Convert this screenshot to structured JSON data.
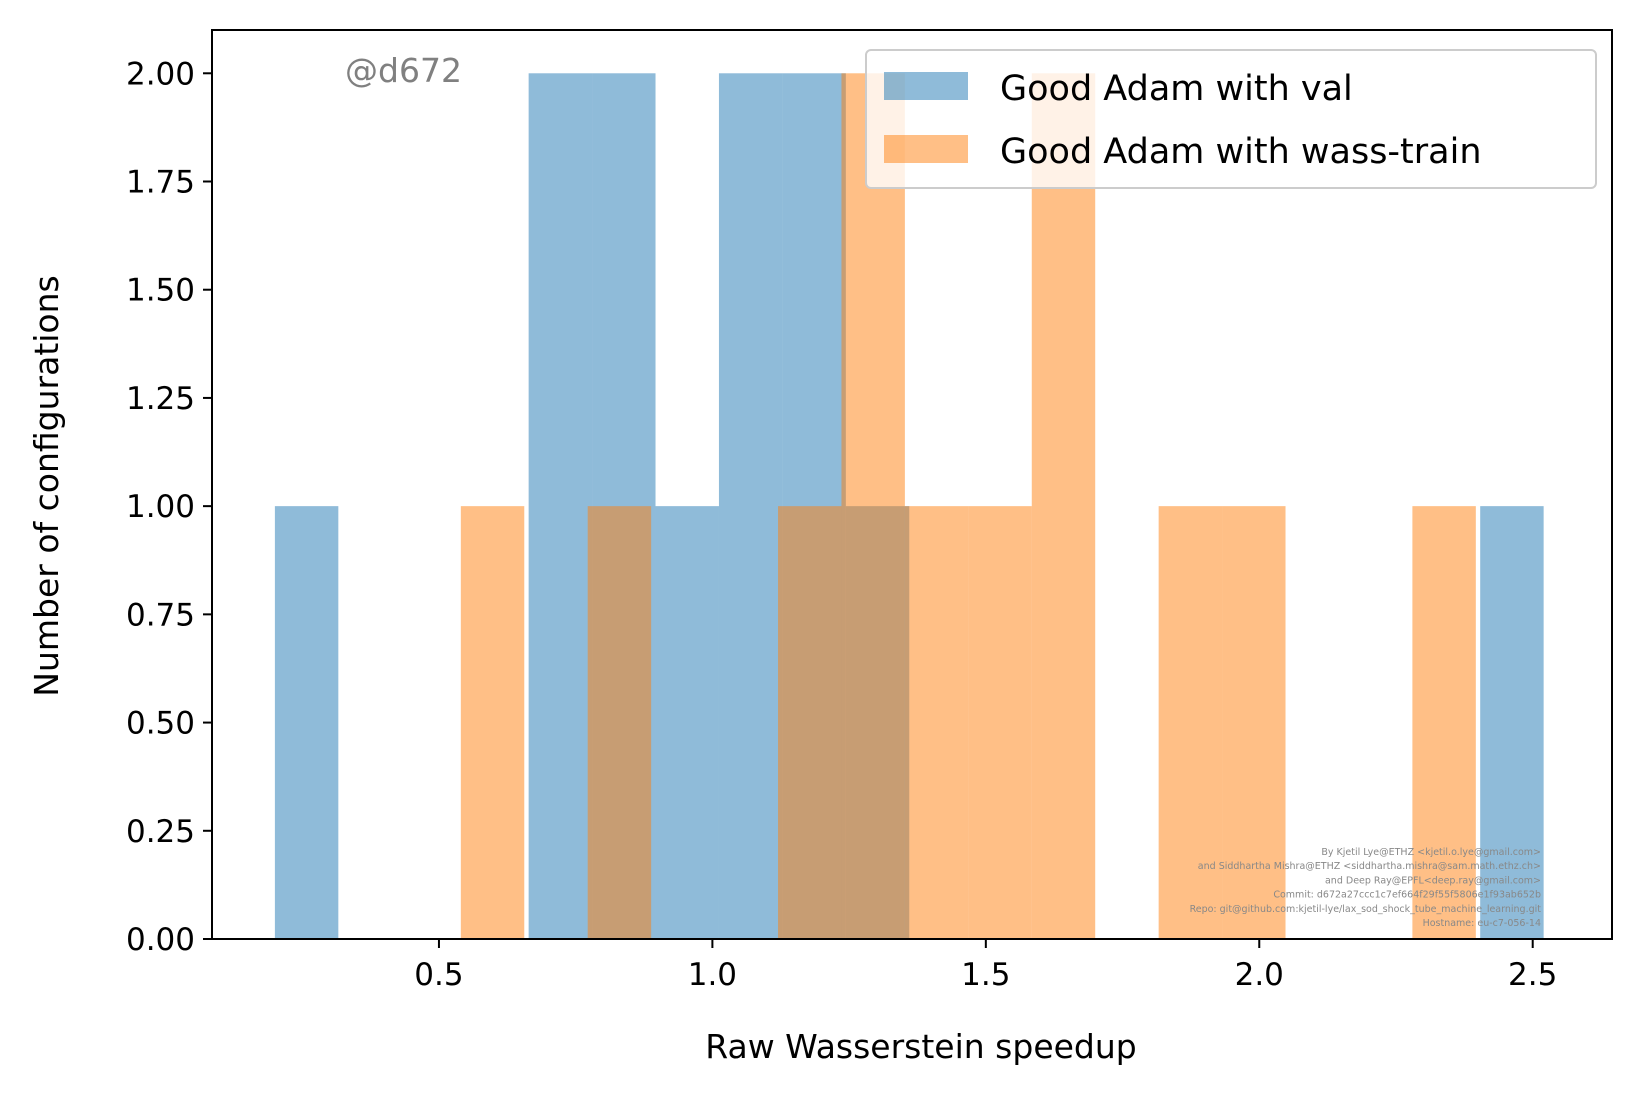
{
  "chart_data": {
    "type": "bar",
    "xlabel": "Raw Wasserstein speedup",
    "ylabel": "Number of configurations",
    "xlim": [
      0.085,
      2.645
    ],
    "ylim": [
      0,
      2.1
    ],
    "x_ticks": [
      {
        "value": 0.5,
        "label": "0.5"
      },
      {
        "value": 1.0,
        "label": "1.0"
      },
      {
        "value": 1.5,
        "label": "1.5"
      },
      {
        "value": 2.0,
        "label": "2.0"
      },
      {
        "value": 2.5,
        "label": "2.5"
      }
    ],
    "y_ticks": [
      {
        "value": 0.0,
        "label": "0.00"
      },
      {
        "value": 0.25,
        "label": "0.25"
      },
      {
        "value": 0.5,
        "label": "0.50"
      },
      {
        "value": 0.75,
        "label": "0.75"
      },
      {
        "value": 1.0,
        "label": "1.00"
      },
      {
        "value": 1.25,
        "label": "1.25"
      },
      {
        "value": 1.5,
        "label": "1.50"
      },
      {
        "value": 1.75,
        "label": "1.75"
      },
      {
        "value": 2.0,
        "label": "2.00"
      }
    ],
    "grid": false,
    "legend_position": "top-right",
    "series": [
      {
        "name": "Good Adam with val",
        "color": "#1f77b4",
        "opacity": 0.5,
        "bins": [
          {
            "x0": 0.2,
            "x1": 0.316,
            "count": 1
          },
          {
            "x0": 0.316,
            "x1": 0.432,
            "count": 0
          },
          {
            "x0": 0.432,
            "x1": 0.548,
            "count": 0
          },
          {
            "x0": 0.548,
            "x1": 0.664,
            "count": 0
          },
          {
            "x0": 0.664,
            "x1": 0.78,
            "count": 2
          },
          {
            "x0": 0.78,
            "x1": 0.896,
            "count": 2
          },
          {
            "x0": 0.896,
            "x1": 1.012,
            "count": 1
          },
          {
            "x0": 1.012,
            "x1": 1.128,
            "count": 2
          },
          {
            "x0": 1.128,
            "x1": 1.244,
            "count": 2
          },
          {
            "x0": 1.244,
            "x1": 1.36,
            "count": 1
          },
          {
            "x0": 1.36,
            "x1": 1.476,
            "count": 0
          },
          {
            "x0": 1.476,
            "x1": 1.592,
            "count": 0
          },
          {
            "x0": 1.592,
            "x1": 1.708,
            "count": 0
          },
          {
            "x0": 1.708,
            "x1": 1.824,
            "count": 0
          },
          {
            "x0": 1.824,
            "x1": 1.94,
            "count": 0
          },
          {
            "x0": 1.94,
            "x1": 2.056,
            "count": 0
          },
          {
            "x0": 2.056,
            "x1": 2.172,
            "count": 0
          },
          {
            "x0": 2.172,
            "x1": 2.288,
            "count": 0
          },
          {
            "x0": 2.288,
            "x1": 2.404,
            "count": 0
          },
          {
            "x0": 2.404,
            "x1": 2.52,
            "count": 1
          }
        ]
      },
      {
        "name": "Good Adam with wass-train",
        "color": "#ff7f0e",
        "opacity": 0.5,
        "bins": [
          {
            "x0": 0.54,
            "x1": 0.656,
            "count": 1
          },
          {
            "x0": 0.656,
            "x1": 0.772,
            "count": 0
          },
          {
            "x0": 0.772,
            "x1": 0.888,
            "count": 1
          },
          {
            "x0": 0.888,
            "x1": 1.004,
            "count": 0
          },
          {
            "x0": 1.004,
            "x1": 1.12,
            "count": 0
          },
          {
            "x0": 1.12,
            "x1": 1.236,
            "count": 1
          },
          {
            "x0": 1.236,
            "x1": 1.352,
            "count": 2
          },
          {
            "x0": 1.352,
            "x1": 1.468,
            "count": 1
          },
          {
            "x0": 1.468,
            "x1": 1.584,
            "count": 1
          },
          {
            "x0": 1.584,
            "x1": 1.7,
            "count": 2
          },
          {
            "x0": 1.7,
            "x1": 1.816,
            "count": 0
          },
          {
            "x0": 1.816,
            "x1": 1.932,
            "count": 1
          },
          {
            "x0": 1.932,
            "x1": 2.048,
            "count": 1
          },
          {
            "x0": 2.048,
            "x1": 2.164,
            "count": 0
          },
          {
            "x0": 2.164,
            "x1": 2.28,
            "count": 0
          },
          {
            "x0": 2.28,
            "x1": 2.396,
            "count": 1
          }
        ]
      }
    ],
    "annotation": "@d672",
    "credits": [
      "By Kjetil Lye@ETHZ <kjetil.o.lye@gmail.com>",
      "and Siddhartha Mishra@ETHZ <siddhartha.mishra@sam.math.ethz.ch>",
      "and Deep Ray@EPFL<deep.ray@gmail.com>",
      "Commit: d672a27ccc1c7ef664f29f55f5806e1f93ab652b",
      "Repo: git@github.com:kjetil-lye/lax_sod_shock_tube_machine_learning.git",
      "Hostname: eu-c7-056-14"
    ]
  }
}
